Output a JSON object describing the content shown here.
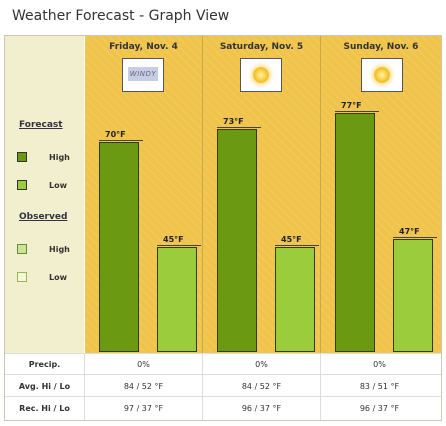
{
  "title": "Weather Forecast - Graph View",
  "legend": {
    "forecast_heading": "Forecast",
    "observed_heading": "Observed",
    "forecast_high": "High",
    "forecast_low": "Low",
    "observed_high": "High",
    "observed_low": "Low"
  },
  "colors": {
    "forecast_high": "#6b9a12",
    "forecast_low": "#9bcc3c",
    "observed_high": "#c9e59a",
    "observed_low": "#f2f8dc",
    "day_background": "#f0c44a"
  },
  "days": [
    {
      "label": "Friday, Nov. 4",
      "icon": "windy-icon",
      "icon_text": "WINDY",
      "high": "70°F",
      "low": "45°F",
      "high_value": 70,
      "low_value": 45,
      "precip": "0%",
      "avg": "84 / 52 °F",
      "rec": "97 / 37 °F"
    },
    {
      "label": "Saturday, Nov. 5",
      "icon": "sunny-icon",
      "high": "73°F",
      "low": "45°F",
      "high_value": 73,
      "low_value": 45,
      "precip": "0%",
      "avg": "84 / 52 °F",
      "rec": "96 / 37 °F"
    },
    {
      "label": "Sunday, Nov. 6",
      "icon": "sunny-icon",
      "high": "77°F",
      "low": "47°F",
      "high_value": 77,
      "low_value": 47,
      "precip": "0%",
      "avg": "83 / 51 °F",
      "rec": "96 / 37 °F"
    }
  ],
  "rows": {
    "precip": "Precip.",
    "avg": "Avg. Hi / Lo",
    "rec": "Rec. Hi / Lo"
  }
}
